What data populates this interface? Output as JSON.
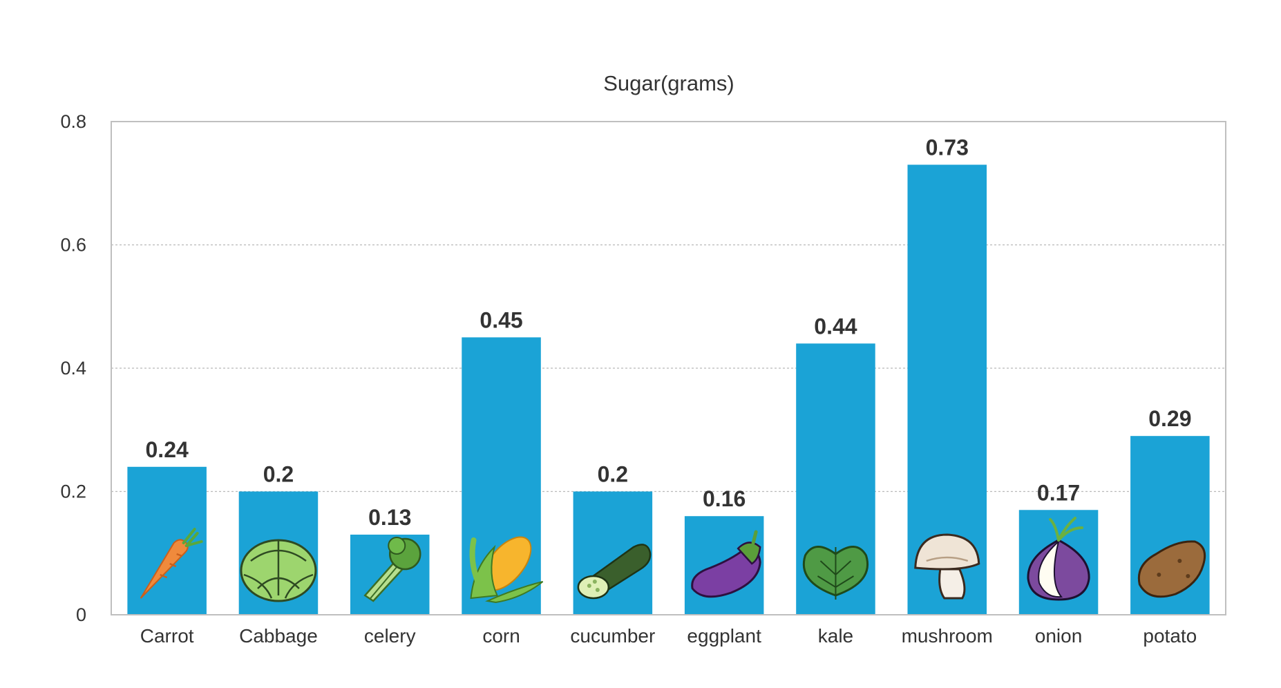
{
  "chart_data": {
    "type": "bar",
    "title": "Sugar(grams)",
    "xlabel": "",
    "ylabel": "",
    "categories": [
      "Carrot",
      "Cabbage",
      "celery",
      "corn",
      "cucumber",
      "eggplant",
      "kale",
      "mushroom",
      "onion",
      "potato"
    ],
    "values": [
      0.24,
      0.2,
      0.13,
      0.45,
      0.2,
      0.16,
      0.44,
      0.73,
      0.17,
      0.29
    ],
    "data_labels": [
      "0.24",
      "0.2",
      "0.13",
      "0.45",
      "0.2",
      "0.16",
      "0.44",
      "0.73",
      "0.17",
      "0.29"
    ],
    "ylim": [
      0,
      0.8
    ],
    "yticks": [
      0,
      0.2,
      0.4,
      0.6,
      0.8
    ],
    "ytick_labels": [
      "0",
      "0.2",
      "0.4",
      "0.6",
      "0.8"
    ],
    "grid": true,
    "legend": "none",
    "bar_color": "#1ba3d6",
    "icons": [
      "carrot-icon",
      "cabbage-icon",
      "celery-icon",
      "corn-icon",
      "cucumber-icon",
      "eggplant-icon",
      "kale-icon",
      "mushroom-icon",
      "onion-icon",
      "potato-icon"
    ]
  }
}
